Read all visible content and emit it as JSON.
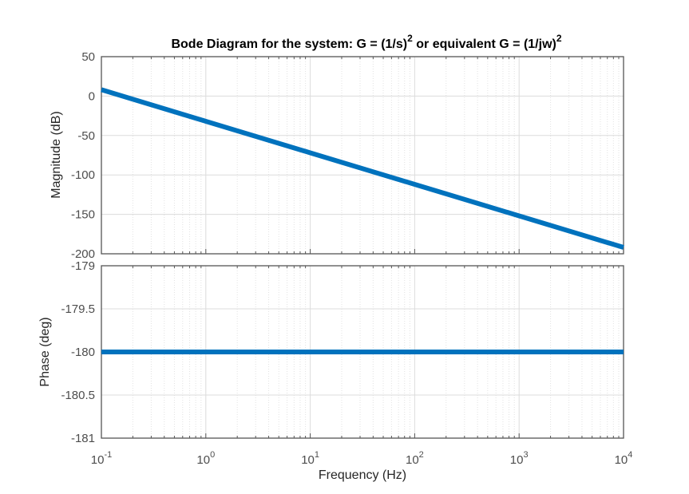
{
  "chart_data": [
    {
      "type": "line",
      "title": "Bode Diagram for the system: G = (1/s)^2 or equivalent G = (1/jw)^2",
      "title_parts": {
        "a": "Bode Diagram for the system: G = (1/s)",
        "sup1": "2",
        "b": " or equivalent G = (1/jw)",
        "sup2": "2"
      },
      "ylabel": "Magnitude (dB)",
      "xscale": "log",
      "xlim": [
        0.1,
        10000
      ],
      "ylim": [
        -200,
        50
      ],
      "yticks": [
        "50",
        "0",
        "-50",
        "-100",
        "-150",
        "-200"
      ],
      "grid": true,
      "color": "#0072BD",
      "series": [
        {
          "x": [
            0.1,
            1,
            10,
            100,
            1000,
            10000
          ],
          "values": [
            8.07,
            -31.93,
            -71.93,
            -111.93,
            -151.93,
            -191.93
          ]
        }
      ]
    },
    {
      "type": "line",
      "xlabel": "Frequency  (Hz)",
      "ylabel": "Phase (deg)",
      "xscale": "log",
      "xlim": [
        0.1,
        10000
      ],
      "ylim": [
        -181,
        -179
      ],
      "yticks": [
        "-179",
        "-179.5",
        "-180",
        "-180.5",
        "-181"
      ],
      "xticks": [
        {
          "base": "10",
          "exp": "-1"
        },
        {
          "base": "10",
          "exp": "0"
        },
        {
          "base": "10",
          "exp": "1"
        },
        {
          "base": "10",
          "exp": "2"
        },
        {
          "base": "10",
          "exp": "3"
        },
        {
          "base": "10",
          "exp": "4"
        }
      ],
      "grid": true,
      "color": "#0072BD",
      "series": [
        {
          "x": [
            0.1,
            10000
          ],
          "values": [
            -180,
            -180
          ]
        }
      ]
    }
  ]
}
